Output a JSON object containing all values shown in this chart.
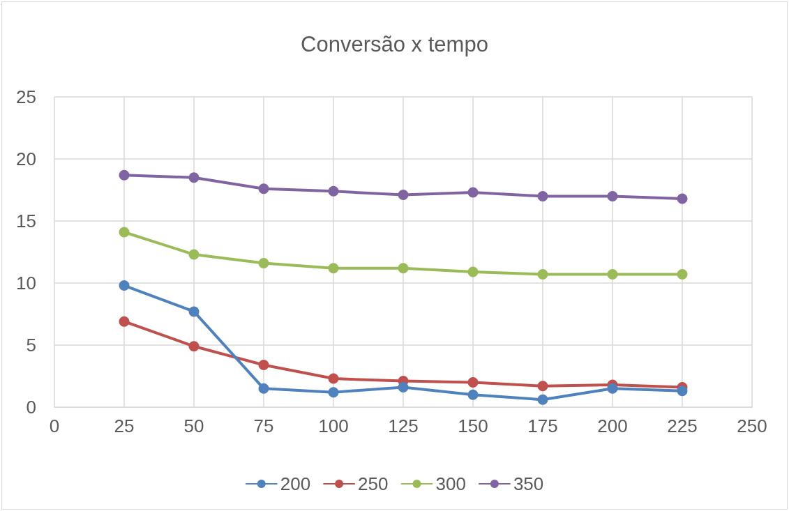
{
  "chart_data": {
    "type": "line",
    "title": "Conversão x tempo",
    "x": [
      25,
      50,
      75,
      100,
      125,
      150,
      175,
      200,
      225
    ],
    "series": [
      {
        "name": "200",
        "color": "#4f81bd",
        "values": [
          9.8,
          7.7,
          1.5,
          1.2,
          1.6,
          1.0,
          0.6,
          1.5,
          1.3
        ]
      },
      {
        "name": "250",
        "color": "#c0504d",
        "values": [
          6.9,
          4.9,
          3.4,
          2.3,
          2.1,
          2.0,
          1.7,
          1.8,
          1.6
        ]
      },
      {
        "name": "300",
        "color": "#9bbb59",
        "values": [
          14.1,
          12.3,
          11.6,
          11.2,
          11.2,
          10.9,
          10.7,
          10.7,
          10.7
        ]
      },
      {
        "name": "350",
        "color": "#8064a2",
        "values": [
          18.7,
          18.5,
          17.6,
          17.4,
          17.1,
          17.3,
          17.0,
          17.0,
          16.8
        ]
      }
    ],
    "xlim": [
      0,
      250
    ],
    "xticks": [
      0,
      25,
      50,
      75,
      100,
      125,
      150,
      175,
      200,
      225,
      250
    ],
    "ylim": [
      0,
      25
    ],
    "yticks": [
      0,
      5,
      10,
      15,
      20,
      25
    ],
    "grid": true,
    "legend": "bottom",
    "marker": "circle",
    "line_style": "solid"
  }
}
